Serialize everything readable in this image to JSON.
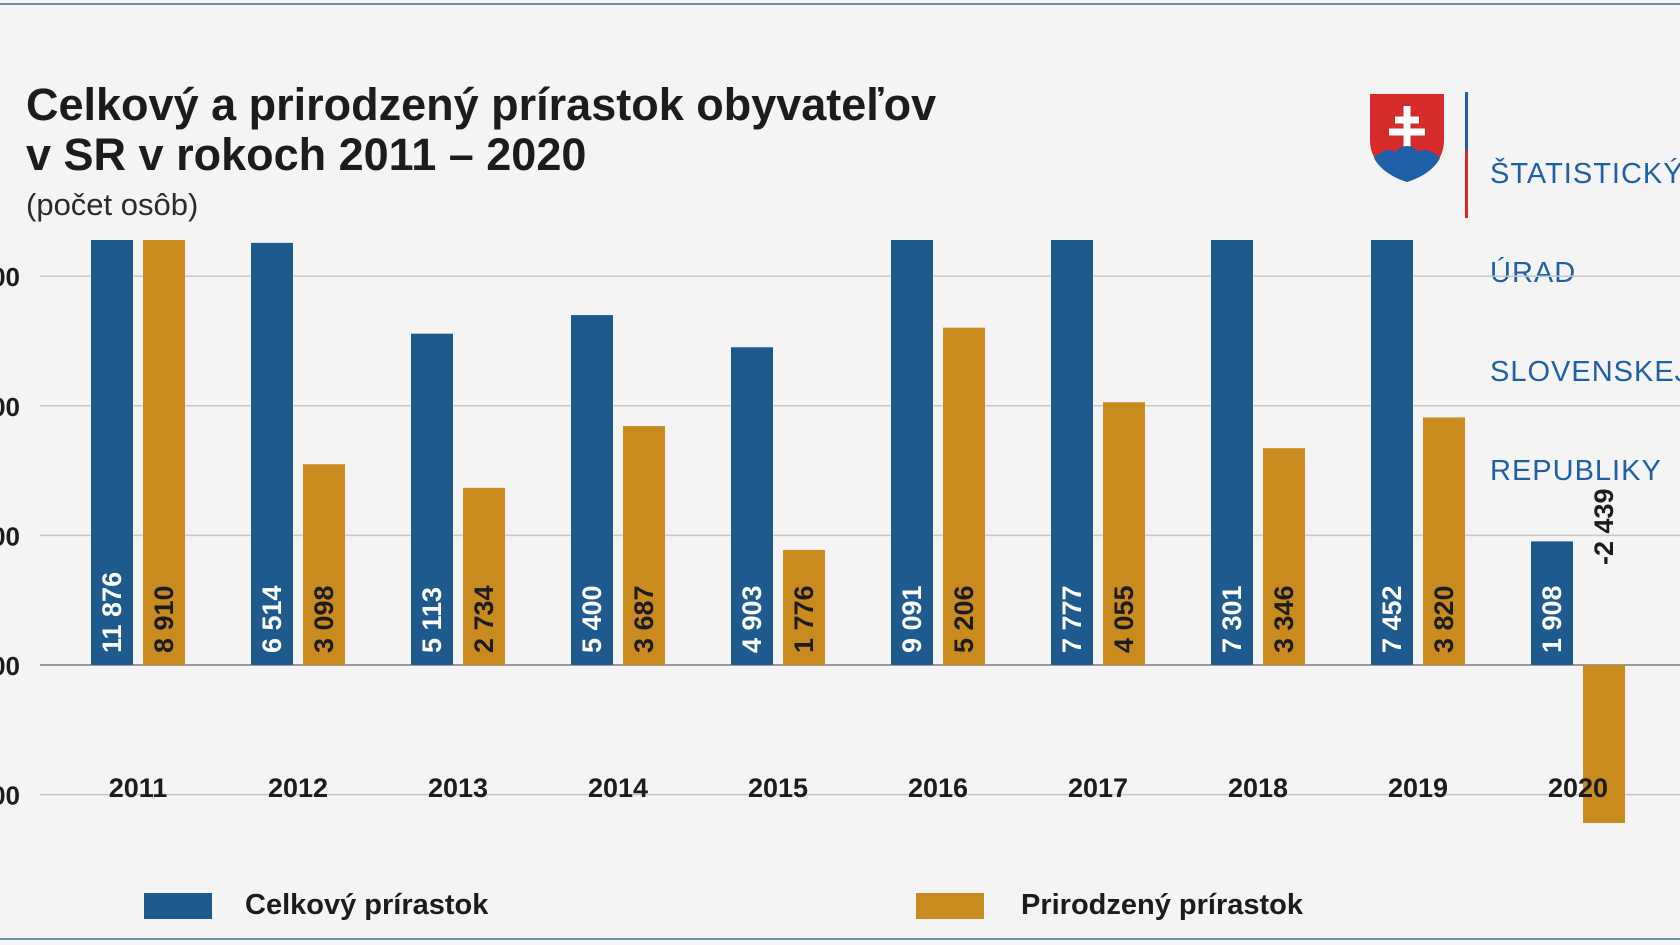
{
  "header": {
    "title_line1": "Celkový a prirodzený prírastok obyvateľov",
    "title_line2": "v SR v rokoch 2011 – 2020",
    "subtitle": "(počet osôb)"
  },
  "logo": {
    "lines": [
      "ŠTATISTICKÝ",
      "ÚRAD",
      "SLOVENSKEJ",
      "REPUBLIKY"
    ]
  },
  "chart_data": {
    "type": "bar",
    "categories": [
      "2011",
      "2012",
      "2013",
      "2014",
      "2015",
      "2016",
      "2017",
      "2018",
      "2019",
      "2020"
    ],
    "series": [
      {
        "name": "Celkový prírastok",
        "color": "#1f5a8f",
        "values": [
          11876,
          6514,
          5113,
          5400,
          4903,
          9091,
          7777,
          7301,
          7452,
          1908
        ],
        "labels": [
          "11 876",
          "6 514",
          "5 113",
          "5 400",
          "4 903",
          "9 091",
          "7 777",
          "7 301",
          "7 452",
          "1 908"
        ]
      },
      {
        "name": "Prirodzený prírastok",
        "color": "#c98a1e",
        "values": [
          8910,
          3098,
          2734,
          3687,
          1776,
          5206,
          4055,
          3346,
          3820,
          -2439
        ],
        "labels": [
          "8 910",
          "3 098",
          "2 734",
          "3 687",
          "1 776",
          "5 206",
          "4 055",
          "3 346",
          "3 820",
          "-2 439"
        ]
      }
    ],
    "ylim": [
      -4000,
      12000
    ],
    "gridlines": [
      -4000,
      -2000,
      0,
      2000,
      4000,
      6000,
      8000,
      10000,
      12000
    ],
    "ytick_labels_visible": [
      "00",
      "00",
      "00",
      "00",
      "00",
      "00",
      "0",
      "00",
      "00"
    ],
    "grid": true,
    "legend_position": "bottom"
  }
}
